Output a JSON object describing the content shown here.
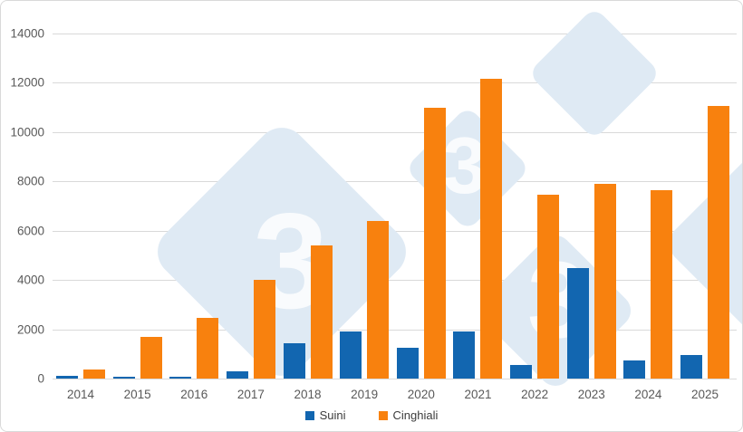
{
  "chart_data": {
    "type": "bar",
    "categories": [
      "2014",
      "2015",
      "2016",
      "2017",
      "2018",
      "2019",
      "2020",
      "2021",
      "2022",
      "2023",
      "2024",
      "2025"
    ],
    "series": [
      {
        "name": "Suini",
        "color": "#1266b0",
        "values": [
          100,
          75,
          75,
          280,
          1450,
          1900,
          1250,
          1900,
          550,
          4500,
          750,
          950
        ]
      },
      {
        "name": "Cinghiali",
        "color": "#f8810e",
        "values": [
          350,
          1700,
          2450,
          4000,
          5400,
          6400,
          11000,
          12150,
          7450,
          7900,
          7650,
          11050
        ]
      }
    ],
    "title": "",
    "xlabel": "",
    "ylabel": "",
    "ylim": [
      0,
      14000
    ],
    "yticks": [
      0,
      2000,
      4000,
      6000,
      8000,
      10000,
      12000,
      14000
    ],
    "grid": true,
    "legend_position": "bottom"
  },
  "legend": {
    "items": [
      {
        "label": "Suini",
        "color": "#1266b0"
      },
      {
        "label": "Cinghiali",
        "color": "#f8810e"
      }
    ]
  },
  "watermark": {
    "digit": "3",
    "diamond_color": "#dfeaf4",
    "digit_color": "rgba(255,255,255,0.8)"
  },
  "colors": {
    "grid": "#d9d9d9",
    "axis_text": "#595959",
    "border": "#d9d9d9",
    "background": "#ffffff"
  }
}
